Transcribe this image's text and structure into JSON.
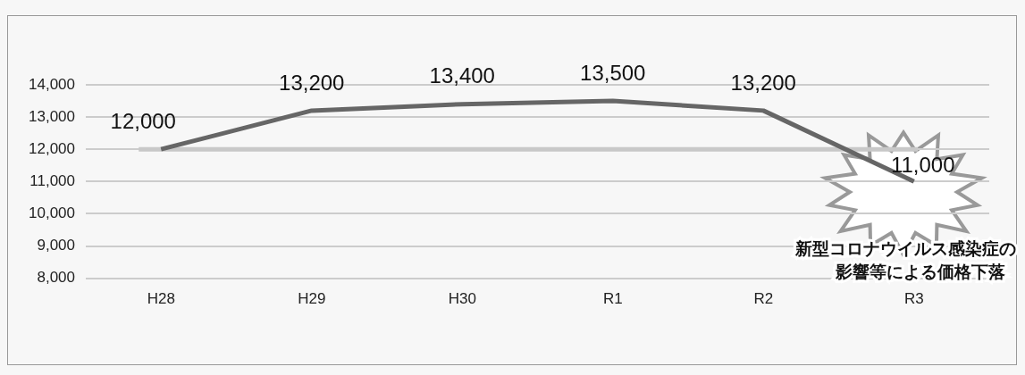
{
  "chart_data": {
    "type": "line",
    "categories": [
      "H28",
      "H29",
      "H30",
      "R1",
      "R2",
      "R3"
    ],
    "series": [
      {
        "color": "#666666",
        "values": [
          12000,
          13200,
          13400,
          13500,
          13200,
          11000
        ],
        "value_labels": [
          "12,000",
          "13,200",
          "13,400",
          "13,500",
          "13,200",
          "11,000"
        ]
      }
    ],
    "ylim": [
      8000,
      14000
    ],
    "yticks": [
      {
        "value": 8000,
        "label": "8,000"
      },
      {
        "value": 9000,
        "label": "9,000"
      },
      {
        "value": 10000,
        "label": "10,000"
      },
      {
        "value": 11000,
        "label": "11,000"
      },
      {
        "value": 12000,
        "label": "12,000"
      },
      {
        "value": 13000,
        "label": "13,000"
      },
      {
        "value": 14000,
        "label": "14,000"
      }
    ],
    "grid": "y",
    "legend": false,
    "marker": "none",
    "line_style": "solid",
    "ref_lines": [
      {
        "axis": "y",
        "value": 12000,
        "color": "#c8c8c8"
      }
    ],
    "annotations": [
      "新型コロナウイルス感染症の",
      "影響等による価格下落"
    ]
  }
}
